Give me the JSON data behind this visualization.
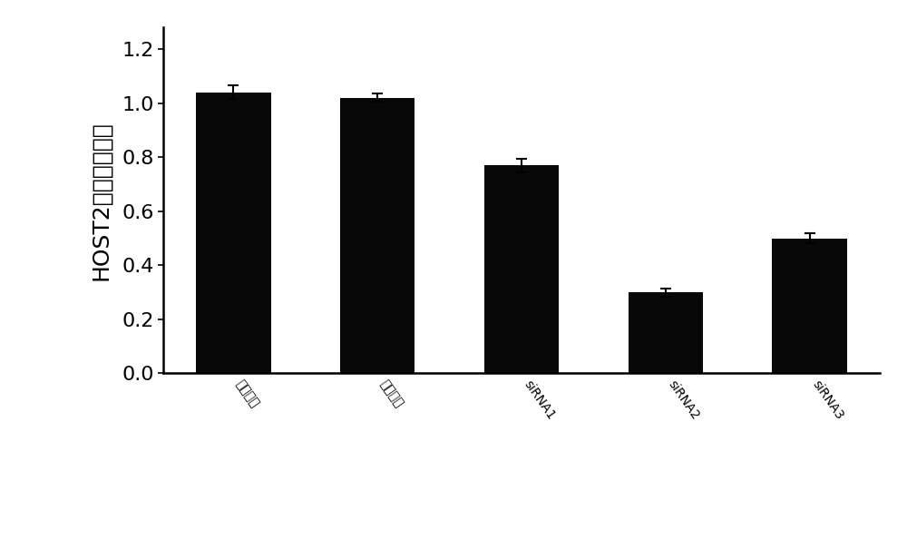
{
  "categories": [
    "空白对照",
    "阴性对照",
    "siRNA1",
    "siRNA2",
    "siRNA3"
  ],
  "values": [
    1.04,
    1.02,
    0.77,
    0.3,
    0.5
  ],
  "errors": [
    0.025,
    0.015,
    0.025,
    0.015,
    0.018
  ],
  "bar_color": "#080808",
  "bar_width": 0.52,
  "ylabel": "HOST2的相对表达量",
  "ylim": [
    0,
    1.28
  ],
  "yticks": [
    0,
    0.2,
    0.4,
    0.6,
    0.8,
    1.0,
    1.2
  ],
  "background_color": "#ffffff",
  "tick_label_rotation": -55,
  "ylabel_fontsize": 18,
  "tick_fontsize": 15,
  "ytick_fontsize": 16
}
